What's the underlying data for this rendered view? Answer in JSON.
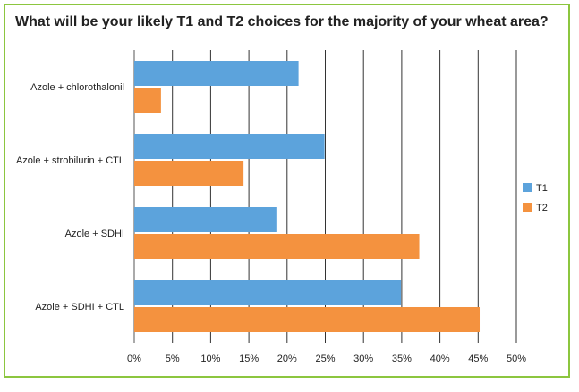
{
  "chart_data": {
    "type": "bar",
    "orientation": "horizontal",
    "title": "What will be your likely T1 and T2 choices for the majority of your wheat area?",
    "categories": [
      "Azole + chlorothalonil",
      "Azole + strobilurin + CTL",
      "Azole + SDHI",
      "Azole + SDHI + CTL"
    ],
    "series": [
      {
        "name": "T1",
        "color": "#5ca3dc",
        "values": [
          21.5,
          24.9,
          18.6,
          34.9
        ]
      },
      {
        "name": "T2",
        "color": "#f4923f",
        "values": [
          3.5,
          14.3,
          37.3,
          45.2
        ]
      }
    ],
    "xlim": [
      0,
      50
    ],
    "xticks": [
      "0%",
      "5%",
      "10%",
      "15%",
      "20%",
      "25%",
      "30%",
      "35%",
      "40%",
      "45%",
      "50%"
    ],
    "grid": true,
    "legend_position": "right"
  }
}
